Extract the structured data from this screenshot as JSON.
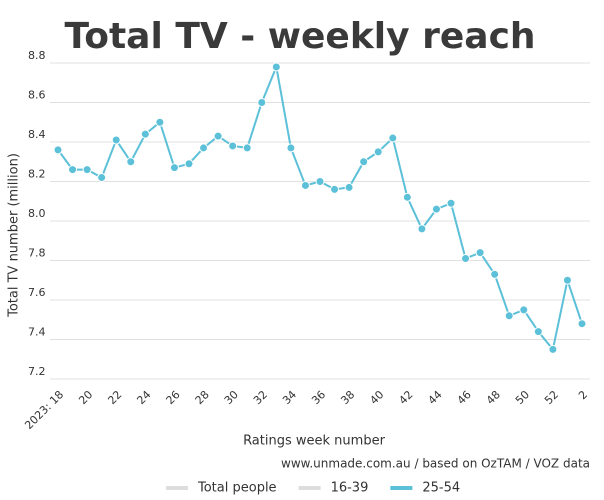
{
  "chart_data": {
    "type": "line",
    "title": "Total TV - weekly reach",
    "y_label": "Total TV number (million)",
    "x_label": "Ratings week number",
    "source": "www.unmade.com.au / based on OzTAM / VOZ data",
    "categories": [
      "2023: 18",
      null,
      "20",
      null,
      "22",
      null,
      "24",
      null,
      "26",
      null,
      "28",
      null,
      "30",
      null,
      "32",
      null,
      "34",
      null,
      "36",
      null,
      "38",
      null,
      "40",
      null,
      "42",
      null,
      "44",
      null,
      "46",
      null,
      "48",
      null,
      "50",
      null,
      "52",
      null,
      "2"
    ],
    "series": [
      {
        "name": "Total people",
        "color": "#dddddd",
        "hidden": true,
        "values": [
          null,
          null,
          null,
          null,
          null,
          null,
          null,
          null,
          null,
          null,
          null,
          null,
          null,
          null,
          null,
          null,
          null,
          null,
          null,
          null,
          null,
          null,
          null,
          null,
          null,
          null,
          null,
          null,
          null,
          null,
          null,
          null,
          null,
          null,
          null,
          null,
          null
        ]
      },
      {
        "name": "16-39",
        "color": "#dddddd",
        "hidden": true,
        "values": [
          null,
          null,
          null,
          null,
          null,
          null,
          null,
          null,
          null,
          null,
          null,
          null,
          null,
          null,
          null,
          null,
          null,
          null,
          null,
          null,
          null,
          null,
          null,
          null,
          null,
          null,
          null,
          null,
          null,
          null,
          null,
          null,
          null,
          null,
          null,
          null,
          null
        ]
      },
      {
        "name": "25-54",
        "color": "#5bc0d8",
        "values": [
          8.36,
          8.26,
          8.26,
          8.22,
          8.41,
          8.3,
          8.44,
          8.5,
          8.27,
          8.29,
          8.37,
          8.43,
          8.38,
          8.37,
          8.6,
          8.78,
          8.37,
          8.18,
          8.2,
          8.16,
          8.17,
          8.3,
          8.35,
          8.42,
          8.12,
          7.96,
          8.06,
          8.09,
          7.81,
          7.84,
          7.73,
          7.52,
          7.55,
          7.44,
          7.35,
          7.7,
          7.48
        ]
      }
    ],
    "ylim": [
      7.2,
      8.8
    ],
    "yticks": [
      7.2,
      7.4,
      7.6,
      7.8,
      {
        "value": 8,
        "label": "8.0"
      },
      8.2,
      8.4,
      8.6,
      8.8
    ],
    "grid": true
  }
}
